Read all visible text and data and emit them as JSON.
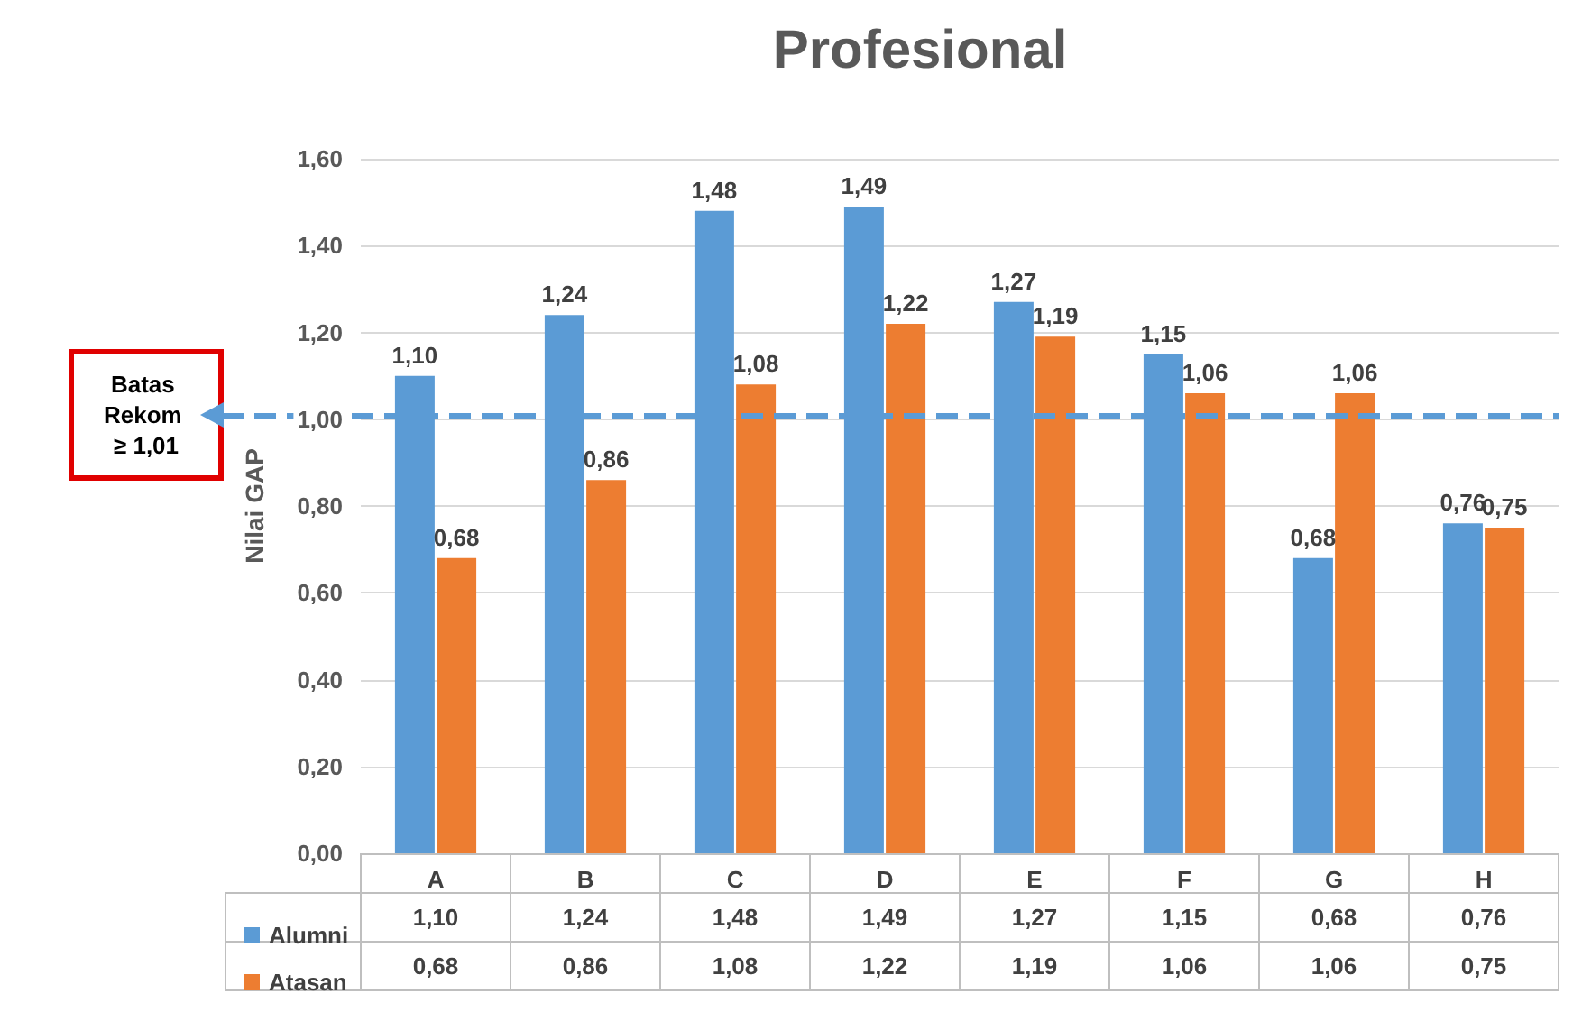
{
  "chart_data": {
    "type": "bar",
    "title": "Profesional",
    "ylabel": "Nilai GAP",
    "categories": [
      "A",
      "B",
      "C",
      "D",
      "E",
      "F",
      "G",
      "H"
    ],
    "series": [
      {
        "name": "Alumni",
        "color": "#5b9bd5",
        "values": [
          1.1,
          1.24,
          1.48,
          1.49,
          1.27,
          1.15,
          0.68,
          0.76
        ],
        "value_labels": [
          "1,10",
          "1,24",
          "1,48",
          "1,49",
          "1,27",
          "1,15",
          "0,68",
          "0,76"
        ]
      },
      {
        "name": "Atasan",
        "color": "#ed7d31",
        "values": [
          0.68,
          0.86,
          1.08,
          1.22,
          1.19,
          1.06,
          1.06,
          0.75
        ],
        "value_labels": [
          "0,68",
          "0,86",
          "1,08",
          "1,22",
          "1,19",
          "1,06",
          "1,06",
          "0,75"
        ]
      }
    ],
    "ylim": [
      0,
      1.6
    ],
    "yticks": [
      {
        "value": 0,
        "label": "0,00"
      },
      {
        "value": 0.2,
        "label": "0,20"
      },
      {
        "value": 0.4,
        "label": "0,40"
      },
      {
        "value": 0.6,
        "label": "0,60"
      },
      {
        "value": 0.8,
        "label": "0,80"
      },
      {
        "value": 1.0,
        "label": "1,00"
      },
      {
        "value": 1.2,
        "label": "1,20"
      },
      {
        "value": 1.4,
        "label": "1,40"
      },
      {
        "value": 1.6,
        "label": "1,60"
      }
    ],
    "ref_lines": [
      {
        "axis": "y",
        "value": 1.01,
        "label": "Batas Rekom ≥ 1,01",
        "color": "#5b9bd5",
        "line_style": "dashed"
      }
    ],
    "grid": "y",
    "legend": "bottom left"
  }
}
